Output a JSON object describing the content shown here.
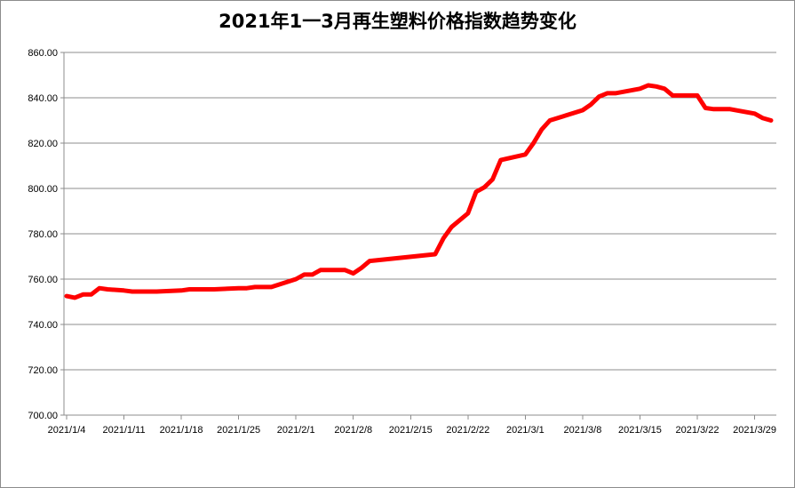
{
  "chart_data": {
    "type": "line",
    "title": "2021年1一3月再生塑料价格指数趋势变化",
    "xlabel": "",
    "ylabel": "",
    "ylim": [
      700,
      860
    ],
    "y_ticks": [
      "700.00",
      "720.00",
      "740.00",
      "760.00",
      "780.00",
      "800.00",
      "820.00",
      "840.00",
      "860.00"
    ],
    "x_ticks": [
      "2021/1/4",
      "2021/1/11",
      "2021/1/18",
      "2021/1/25",
      "2021/2/1",
      "2021/2/8",
      "2021/2/15",
      "2021/2/22",
      "2021/3/1",
      "2021/3/8",
      "2021/3/15",
      "2021/3/22",
      "2021/3/29"
    ],
    "grid": "horizontal",
    "legend": "none",
    "line_color": "#ff0000",
    "series": [
      {
        "x": [
          "2021/1/4",
          "2021/1/5",
          "2021/1/6",
          "2021/1/7",
          "2021/1/8",
          "2021/1/9",
          "2021/1/11",
          "2021/1/12",
          "2021/1/13",
          "2021/1/15",
          "2021/1/18",
          "2021/1/19",
          "2021/1/20",
          "2021/1/22",
          "2021/1/25",
          "2021/1/26",
          "2021/1/27",
          "2021/1/28",
          "2021/1/29",
          "2021/2/1",
          "2021/2/2",
          "2021/2/3",
          "2021/2/4",
          "2021/2/5",
          "2021/2/6",
          "2021/2/7",
          "2021/2/8",
          "2021/2/9",
          "2021/2/10",
          "2021/2/18",
          "2021/2/19",
          "2021/2/20",
          "2021/2/22",
          "2021/2/23",
          "2021/2/24",
          "2021/2/25",
          "2021/2/26",
          "2021/3/1",
          "2021/3/2",
          "2021/3/3",
          "2021/3/4",
          "2021/3/8",
          "2021/3/9",
          "2021/3/10",
          "2021/3/11",
          "2021/3/12",
          "2021/3/15",
          "2021/3/16",
          "2021/3/17",
          "2021/3/18",
          "2021/3/19",
          "2021/3/22",
          "2021/3/23",
          "2021/3/24",
          "2021/3/25",
          "2021/3/26",
          "2021/3/29",
          "2021/3/30",
          "2021/3/31"
        ],
        "values": [
          752.5,
          751.8,
          753.2,
          753.2,
          756.0,
          755.5,
          755.0,
          754.5,
          754.5,
          754.5,
          755.0,
          755.5,
          755.5,
          755.5,
          756.0,
          756.0,
          756.5,
          756.5,
          756.5,
          760.0,
          762.0,
          762.0,
          764.0,
          764.0,
          764.0,
          764.0,
          762.5,
          765.0,
          768.0,
          771.0,
          778.0,
          783.0,
          789.0,
          798.5,
          800.5,
          804.0,
          812.5,
          815.0,
          820.0,
          826.0,
          830.0,
          834.5,
          837.0,
          840.5,
          842.0,
          842.0,
          844.0,
          845.5,
          845.0,
          844.0,
          841.0,
          841.0,
          835.5,
          835.0,
          835.0,
          835.0,
          833.0,
          831.0,
          830.0
        ]
      }
    ]
  }
}
